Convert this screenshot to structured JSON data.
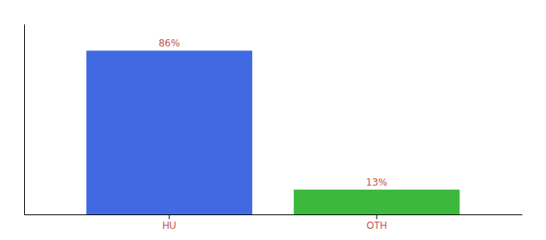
{
  "chart_data": {
    "type": "bar",
    "categories": [
      "HU",
      "OTH"
    ],
    "values": [
      86,
      13
    ],
    "value_labels": [
      "86%",
      "13%"
    ],
    "colors": [
      "#4169e1",
      "#3cb83c"
    ],
    "ylim": [
      0,
      100
    ],
    "data_labels": true,
    "tick_labels": "x"
  }
}
